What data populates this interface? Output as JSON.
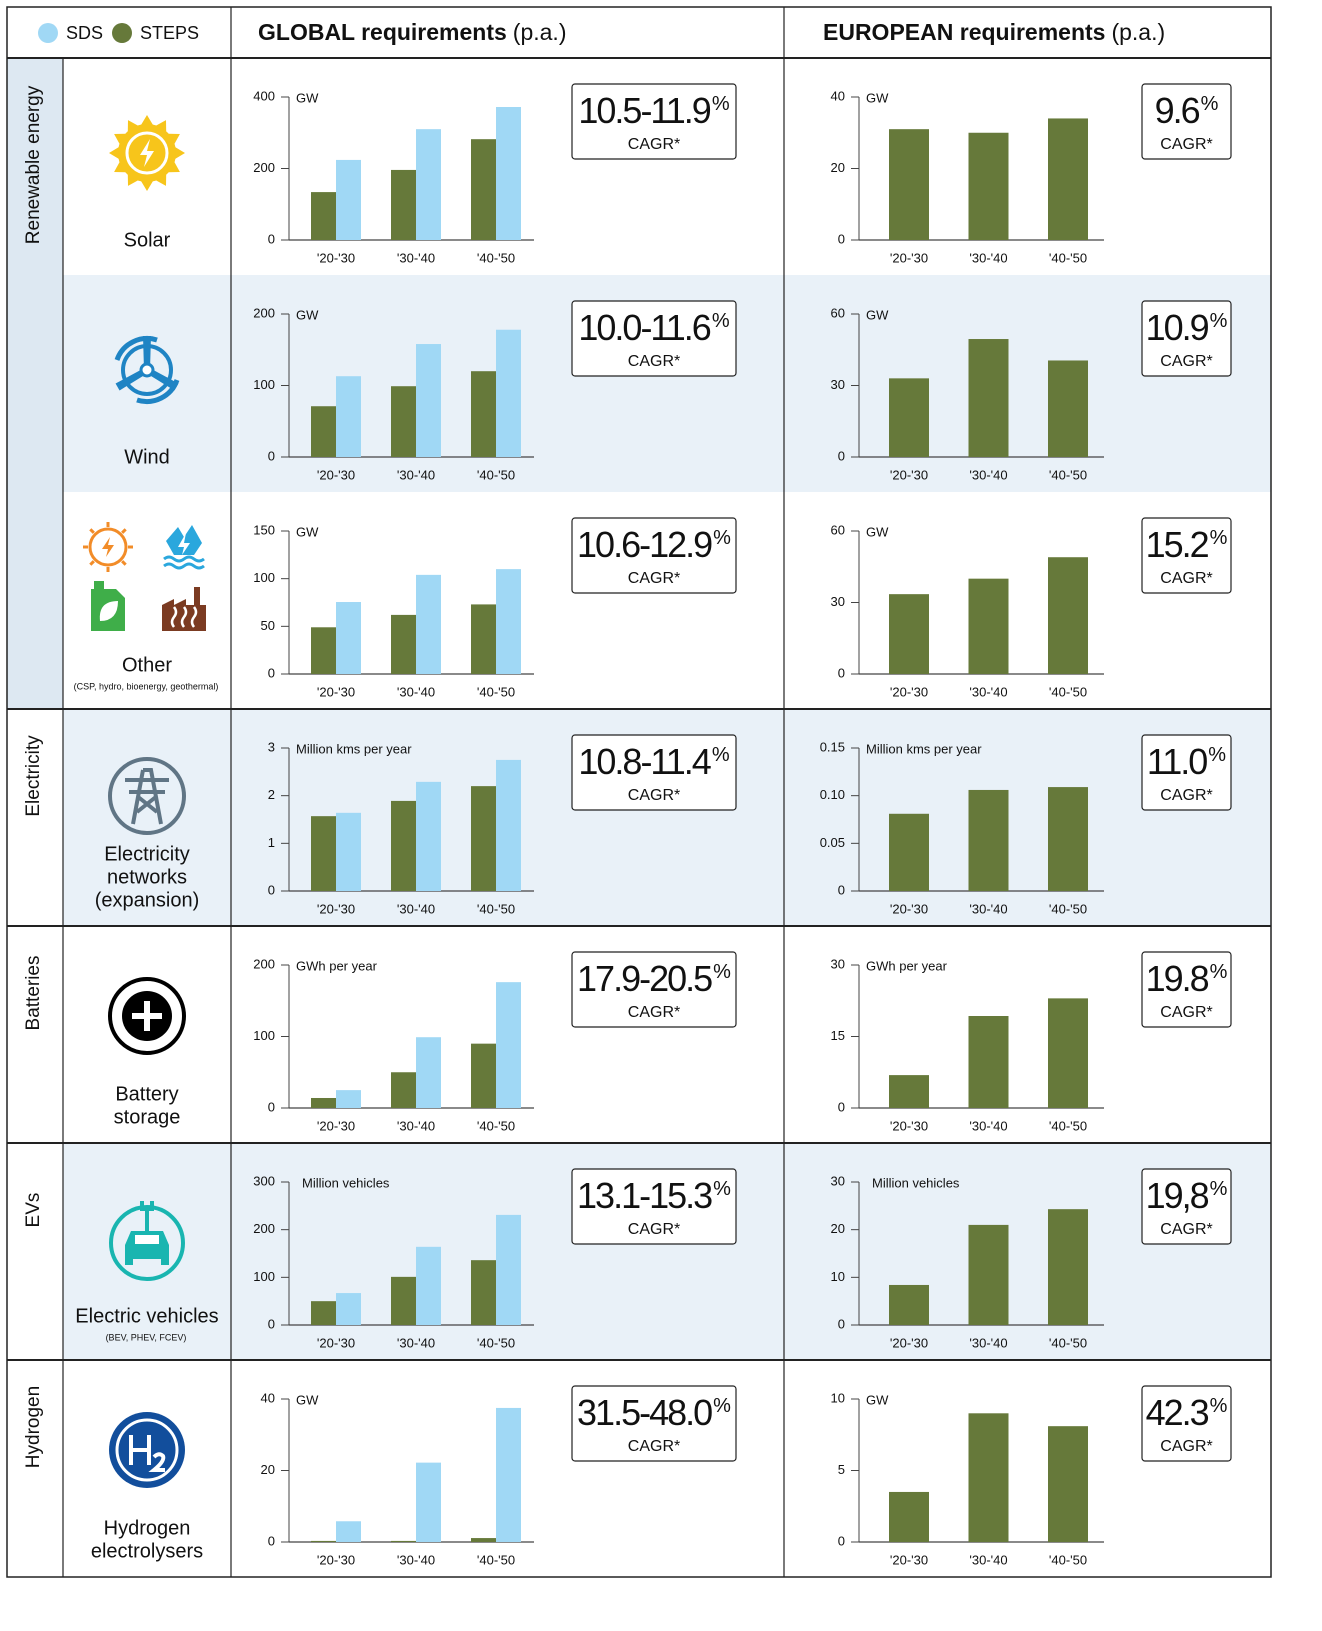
{
  "legend": [
    {
      "name": "SDS",
      "color": "#a0d8f5"
    },
    {
      "name": "STEPS",
      "color": "#66793a"
    }
  ],
  "columns": [
    {
      "title": "GLOBAL requirements",
      "suffix": "(p.a.)"
    },
    {
      "title": "EUROPEAN requirements",
      "suffix": "(p.a.)"
    }
  ],
  "groups": [
    {
      "label": "Renewable energy",
      "rows": [
        {
          "name": [
            "Solar"
          ]
        },
        {
          "name": [
            "Wind"
          ]
        },
        {
          "name": [
            "Other"
          ],
          "note": "(CSP, hydro, bioenergy, geothermal)"
        }
      ]
    },
    {
      "label": "Electricity",
      "rows": [
        {
          "name": [
            "Electricity",
            "networks",
            "(expansion)"
          ]
        }
      ]
    },
    {
      "label": "Batteries",
      "rows": [
        {
          "name": [
            "Battery",
            "storage"
          ]
        }
      ]
    },
    {
      "label": "EVs",
      "rows": [
        {
          "name": [
            "Electric vehicles"
          ],
          "note": "(BEV, PHEV, FCEV)"
        }
      ]
    },
    {
      "label": "Hydrogen",
      "rows": [
        {
          "name": [
            "Hydrogen",
            "electrolysers"
          ]
        }
      ]
    }
  ],
  "cagr_unit": "%",
  "cagr_label": "CAGR*",
  "chart_data": [
    {
      "type": "bar",
      "unit": "GW",
      "annotation": "10.5-11.9",
      "categories": [
        "'20-'30",
        "'30-'40",
        "'40-'50"
      ],
      "ylim": [
        0,
        400
      ],
      "yticks": [
        0,
        200,
        400
      ],
      "series": [
        {
          "color": "#66793a",
          "values": [
            134,
            196,
            282
          ]
        },
        {
          "color": "#a0d8f5",
          "values": [
            224,
            310,
            372
          ]
        }
      ]
    },
    {
      "type": "bar",
      "unit": "GW",
      "annotation": "9.6",
      "categories": [
        "'20-'30",
        "'30-'40",
        "'40-'50"
      ],
      "ylim": [
        0,
        40
      ],
      "yticks": [
        0,
        20,
        40
      ],
      "series": [
        {
          "color": "#66793a",
          "values": [
            31,
            30,
            34
          ]
        }
      ]
    },
    {
      "type": "bar",
      "unit": "GW",
      "annotation": "10.0-11.6",
      "categories": [
        "'20-'30",
        "'30-'40",
        "'40-'50"
      ],
      "ylim": [
        0,
        200
      ],
      "yticks": [
        0,
        100,
        200
      ],
      "series": [
        {
          "color": "#66793a",
          "values": [
            71,
            99,
            120
          ]
        },
        {
          "color": "#a0d8f5",
          "values": [
            113,
            158,
            178
          ]
        }
      ]
    },
    {
      "type": "bar",
      "unit": "GW",
      "annotation": "10.9",
      "categories": [
        "'20-'30",
        "'30-'40",
        "'40-'50"
      ],
      "ylim": [
        0,
        60
      ],
      "yticks": [
        0,
        30,
        60
      ],
      "series": [
        {
          "color": "#66793a",
          "values": [
            33,
            49.5,
            40.5
          ]
        }
      ]
    },
    {
      "type": "bar",
      "unit": "GW",
      "annotation": "10.6-12.9",
      "categories": [
        "'20-'30",
        "'30-'40",
        "'40-'50"
      ],
      "ylim": [
        0,
        150
      ],
      "yticks": [
        0,
        50,
        100,
        150
      ],
      "series": [
        {
          "color": "#66793a",
          "values": [
            49,
            62,
            73
          ]
        },
        {
          "color": "#a0d8f5",
          "values": [
            75.5,
            104,
            110
          ]
        }
      ]
    },
    {
      "type": "bar",
      "unit": "GW",
      "annotation": "15.2",
      "categories": [
        "'20-'30",
        "'30-'40",
        "'40-'50"
      ],
      "ylim": [
        0,
        60
      ],
      "yticks": [
        0,
        30,
        60
      ],
      "series": [
        {
          "color": "#66793a",
          "values": [
            33.5,
            40,
            49
          ]
        }
      ]
    },
    {
      "type": "bar",
      "unit": "Million kms per year",
      "annotation": "10.8-11.4",
      "categories": [
        "'20-'30",
        "'30-'40",
        "'40-'50"
      ],
      "ylim": [
        0,
        3
      ],
      "yticks": [
        0,
        1,
        2,
        3
      ],
      "series": [
        {
          "color": "#66793a",
          "values": [
            1.57,
            1.89,
            2.2
          ]
        },
        {
          "color": "#a0d8f5",
          "values": [
            1.64,
            2.29,
            2.75
          ]
        }
      ]
    },
    {
      "type": "bar",
      "unit": "Million kms per year",
      "annotation": "11.0",
      "categories": [
        "'20-'30",
        "'30-'40",
        "'40-'50"
      ],
      "ylim": [
        0,
        0.15
      ],
      "yticks": [
        0,
        0.05,
        {
          "value": 0.1,
          "label": "0.10"
        },
        0.15
      ],
      "series": [
        {
          "color": "#66793a",
          "values": [
            0.081,
            0.106,
            0.109
          ]
        }
      ]
    },
    {
      "type": "bar",
      "unit": "GWh per year",
      "annotation": "17.9-20.5",
      "categories": [
        "'20-'30",
        "'30-'40",
        "'40-'50"
      ],
      "ylim": [
        0,
        200
      ],
      "yticks": [
        0,
        100,
        200
      ],
      "series": [
        {
          "color": "#66793a",
          "values": [
            14,
            50,
            90
          ]
        },
        {
          "color": "#a0d8f5",
          "values": [
            25,
            99,
            176
          ]
        }
      ]
    },
    {
      "type": "bar",
      "unit": "GWh per year",
      "annotation": "19.8",
      "categories": [
        "'20-'30",
        "'30-'40",
        "'40-'50"
      ],
      "ylim": [
        0,
        30
      ],
      "yticks": [
        0,
        15,
        30
      ],
      "series": [
        {
          "color": "#66793a",
          "values": [
            6.9,
            19.3,
            23
          ]
        }
      ]
    },
    {
      "type": "bar",
      "unit": "Million vehicles",
      "annotation": "13.1-15.3",
      "categories": [
        "'20-'30",
        "'30-'40",
        "'40-'50"
      ],
      "ylim": [
        0,
        300
      ],
      "yticks": [
        0,
        100,
        200,
        300
      ],
      "series": [
        {
          "color": "#66793a",
          "values": [
            50,
            101,
            136
          ]
        },
        {
          "color": "#a0d8f5",
          "values": [
            67,
            164,
            231
          ]
        }
      ]
    },
    {
      "type": "bar",
      "unit": "Million vehicles",
      "annotation": "19,8",
      "categories": [
        "'20-'30",
        "'30-'40",
        "'40-'50"
      ],
      "ylim": [
        0,
        30
      ],
      "yticks": [
        0,
        10,
        20,
        30
      ],
      "series": [
        {
          "color": "#66793a",
          "values": [
            8.4,
            21,
            24.3
          ]
        }
      ]
    },
    {
      "type": "bar",
      "unit": "GW",
      "annotation": "31.5-48.0",
      "categories": [
        "'20-'30",
        "'30-'40",
        "'40-'50"
      ],
      "ylim": [
        0,
        40
      ],
      "yticks": [
        0,
        20,
        40
      ],
      "series": [
        {
          "color": "#66793a",
          "values": [
            0.3,
            0.3,
            1.1
          ]
        },
        {
          "color": "#a0d8f5",
          "values": [
            5.8,
            22.2,
            37.5
          ]
        }
      ]
    },
    {
      "type": "bar",
      "unit": "GW",
      "annotation": "42.3",
      "categories": [
        "'20-'30",
        "'30-'40",
        "'40-'50"
      ],
      "ylim": [
        0,
        10
      ],
      "yticks": [
        0,
        5,
        10
      ],
      "series": [
        {
          "color": "#66793a",
          "values": [
            3.5,
            9,
            8.1
          ]
        }
      ]
    }
  ]
}
